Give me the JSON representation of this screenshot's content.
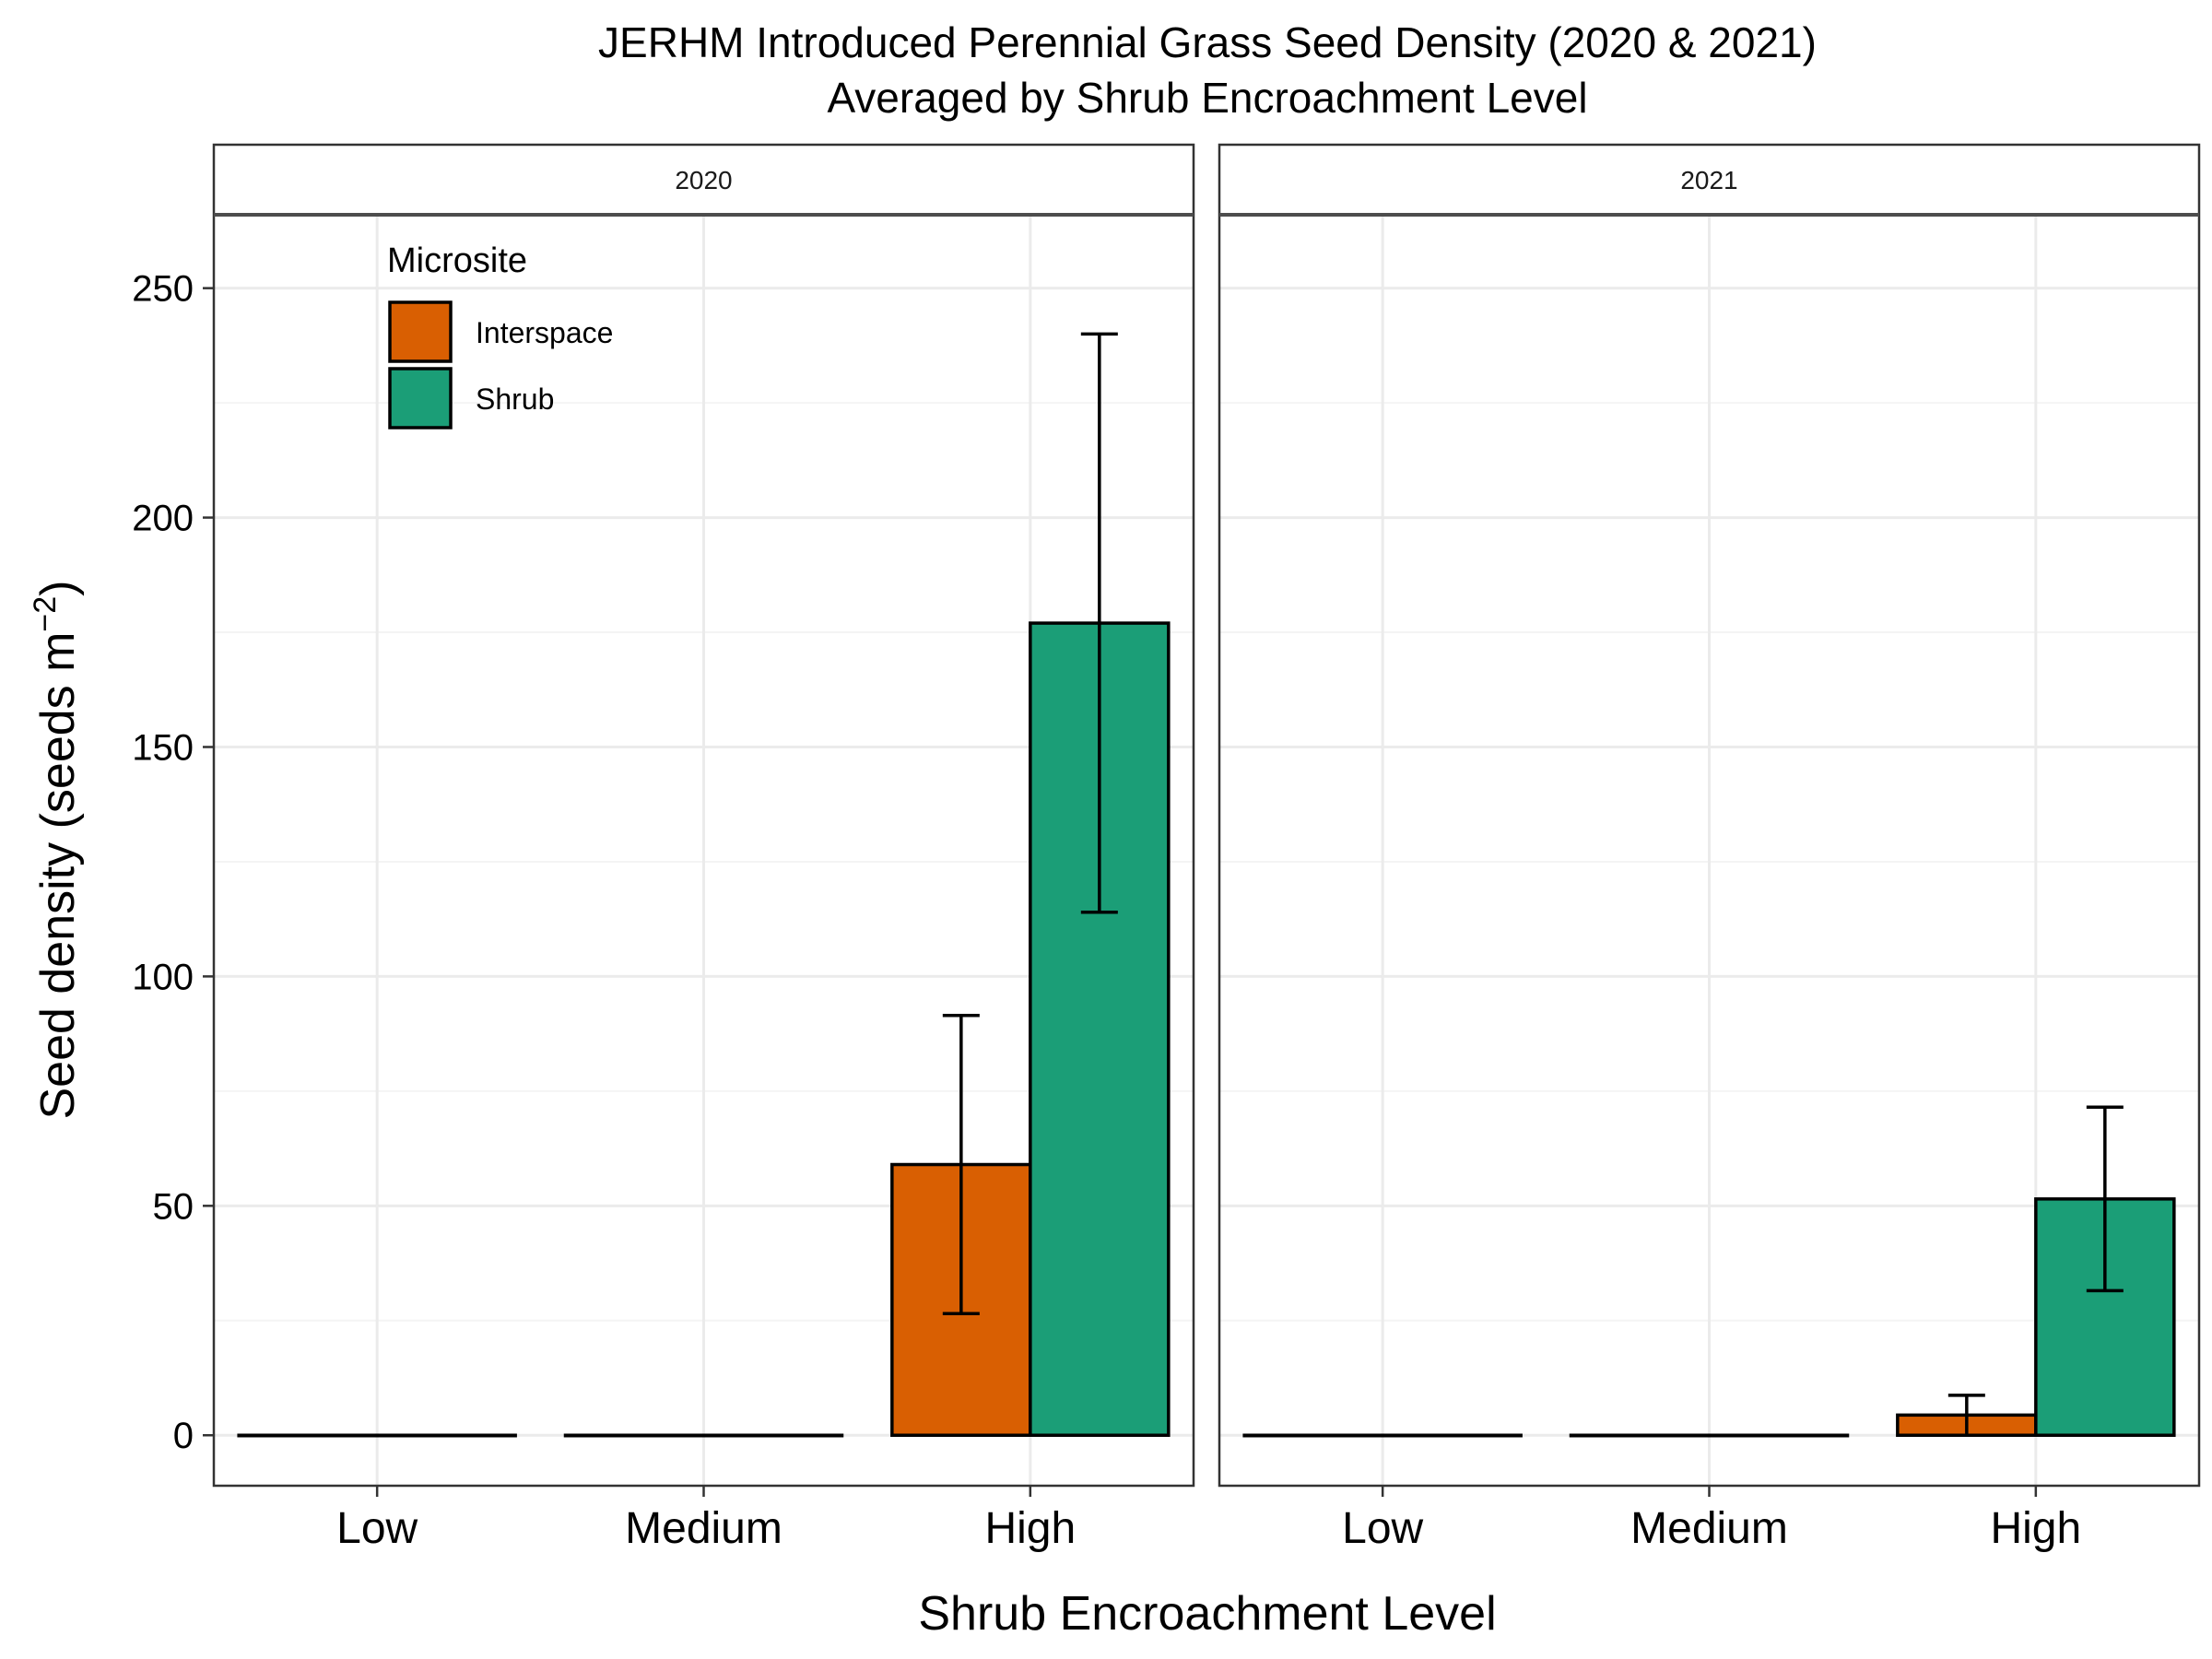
{
  "chart_data": {
    "type": "bar",
    "title": "JERHM Introduced Perennial Grass Seed Density (2020 & 2021)",
    "subtitle": "Averaged by Shrub Encroachment Level",
    "xlabel": "Shrub Encroachment Level",
    "ylabel": "Seed density (seeds m",
    "ylabel_superscript": "−2",
    "ylabel_close": ")",
    "categories": [
      "Low",
      "Medium",
      "High"
    ],
    "ylim": [
      -11,
      266
    ],
    "yticks": [
      0,
      50,
      100,
      150,
      200,
      250
    ],
    "grid": true,
    "legend": {
      "title": "Microsite",
      "placement": "top-left inside first panel",
      "entries": [
        "Interspace",
        "Shrub"
      ]
    },
    "colors": {
      "Interspace": "#d95f02",
      "Shrub": "#1b9e77"
    },
    "facets": [
      {
        "label": "2020",
        "series": [
          {
            "name": "Interspace",
            "values": [
              0,
              0,
              59
            ],
            "error_low": [
              0,
              0,
              26.5
            ],
            "error_high": [
              0,
              0,
              91.5
            ]
          },
          {
            "name": "Shrub",
            "values": [
              0,
              0,
              177
            ],
            "error_low": [
              0,
              0,
              114
            ],
            "error_high": [
              0,
              0,
              240
            ]
          }
        ]
      },
      {
        "label": "2021",
        "series": [
          {
            "name": "Interspace",
            "values": [
              0,
              0,
              4.4
            ],
            "error_low": [
              0,
              0,
              0
            ],
            "error_high": [
              0,
              0,
              8.7
            ]
          },
          {
            "name": "Shrub",
            "values": [
              0,
              0,
              51.5
            ],
            "error_low": [
              0,
              0,
              31.5
            ],
            "error_high": [
              0,
              0,
              71.5
            ]
          }
        ]
      }
    ]
  }
}
